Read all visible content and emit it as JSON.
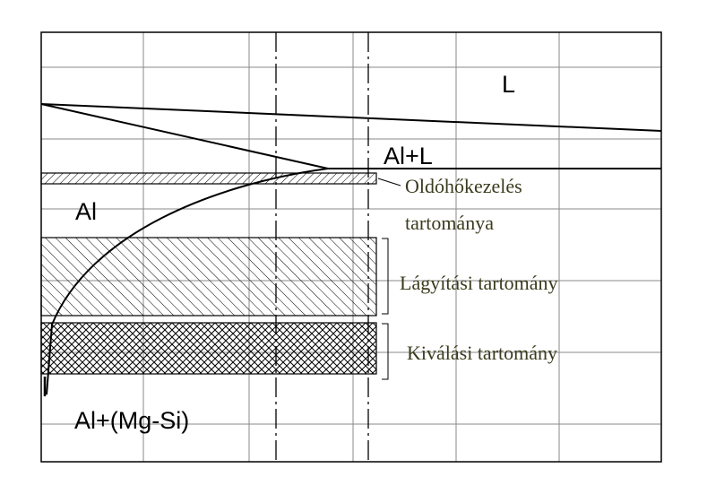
{
  "phase_labels": {
    "liquid": "L",
    "alpha_plus_liquid": "Al+L",
    "alpha": "Al",
    "alpha_plus_precipitate": "Al+(Mg-Si)"
  },
  "range_labels": {
    "solution_treatment_line1": "Oldóhőkezelés",
    "solution_treatment_line2": "tartománya",
    "annealing": "Lágyítási tartomány",
    "precipitation": "Kiválási tartomány"
  },
  "colors": {
    "line": "#000000",
    "grid": "#8a8a8a",
    "range_text": "#3b3b1e"
  }
}
